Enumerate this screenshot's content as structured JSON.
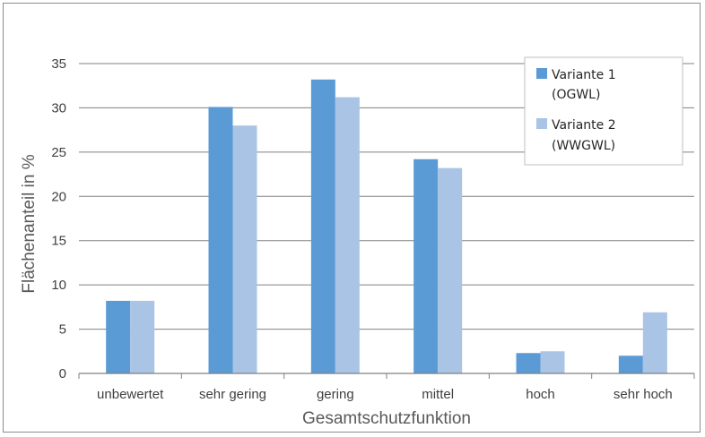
{
  "colors": {
    "series1": "#5b9bd5",
    "series2": "#a9c4e4",
    "grid": "#808080",
    "axis": "#808080",
    "text": "#404040"
  },
  "chart_data": {
    "type": "bar",
    "title": "",
    "xlabel": "Gesamtschutzfunktion",
    "ylabel": "Flächenanteil in %",
    "categories": [
      "unbewertet",
      "sehr gering",
      "gering",
      "mittel",
      "hoch",
      "sehr hoch"
    ],
    "series": [
      {
        "name_lines": [
          "Variante 1",
          "(OGWL)"
        ],
        "values": [
          8.2,
          30.1,
          33.2,
          24.2,
          2.3,
          2.0
        ]
      },
      {
        "name_lines": [
          "Variante 2",
          "(WWGWL)"
        ],
        "values": [
          8.2,
          28.0,
          31.2,
          23.2,
          2.5,
          6.9
        ]
      }
    ],
    "yticks": [
      "0",
      "5",
      "10",
      "15",
      "20",
      "25",
      "30",
      "35"
    ],
    "ylim": [
      0,
      35
    ],
    "grid": true,
    "legend_position": "top-right"
  }
}
